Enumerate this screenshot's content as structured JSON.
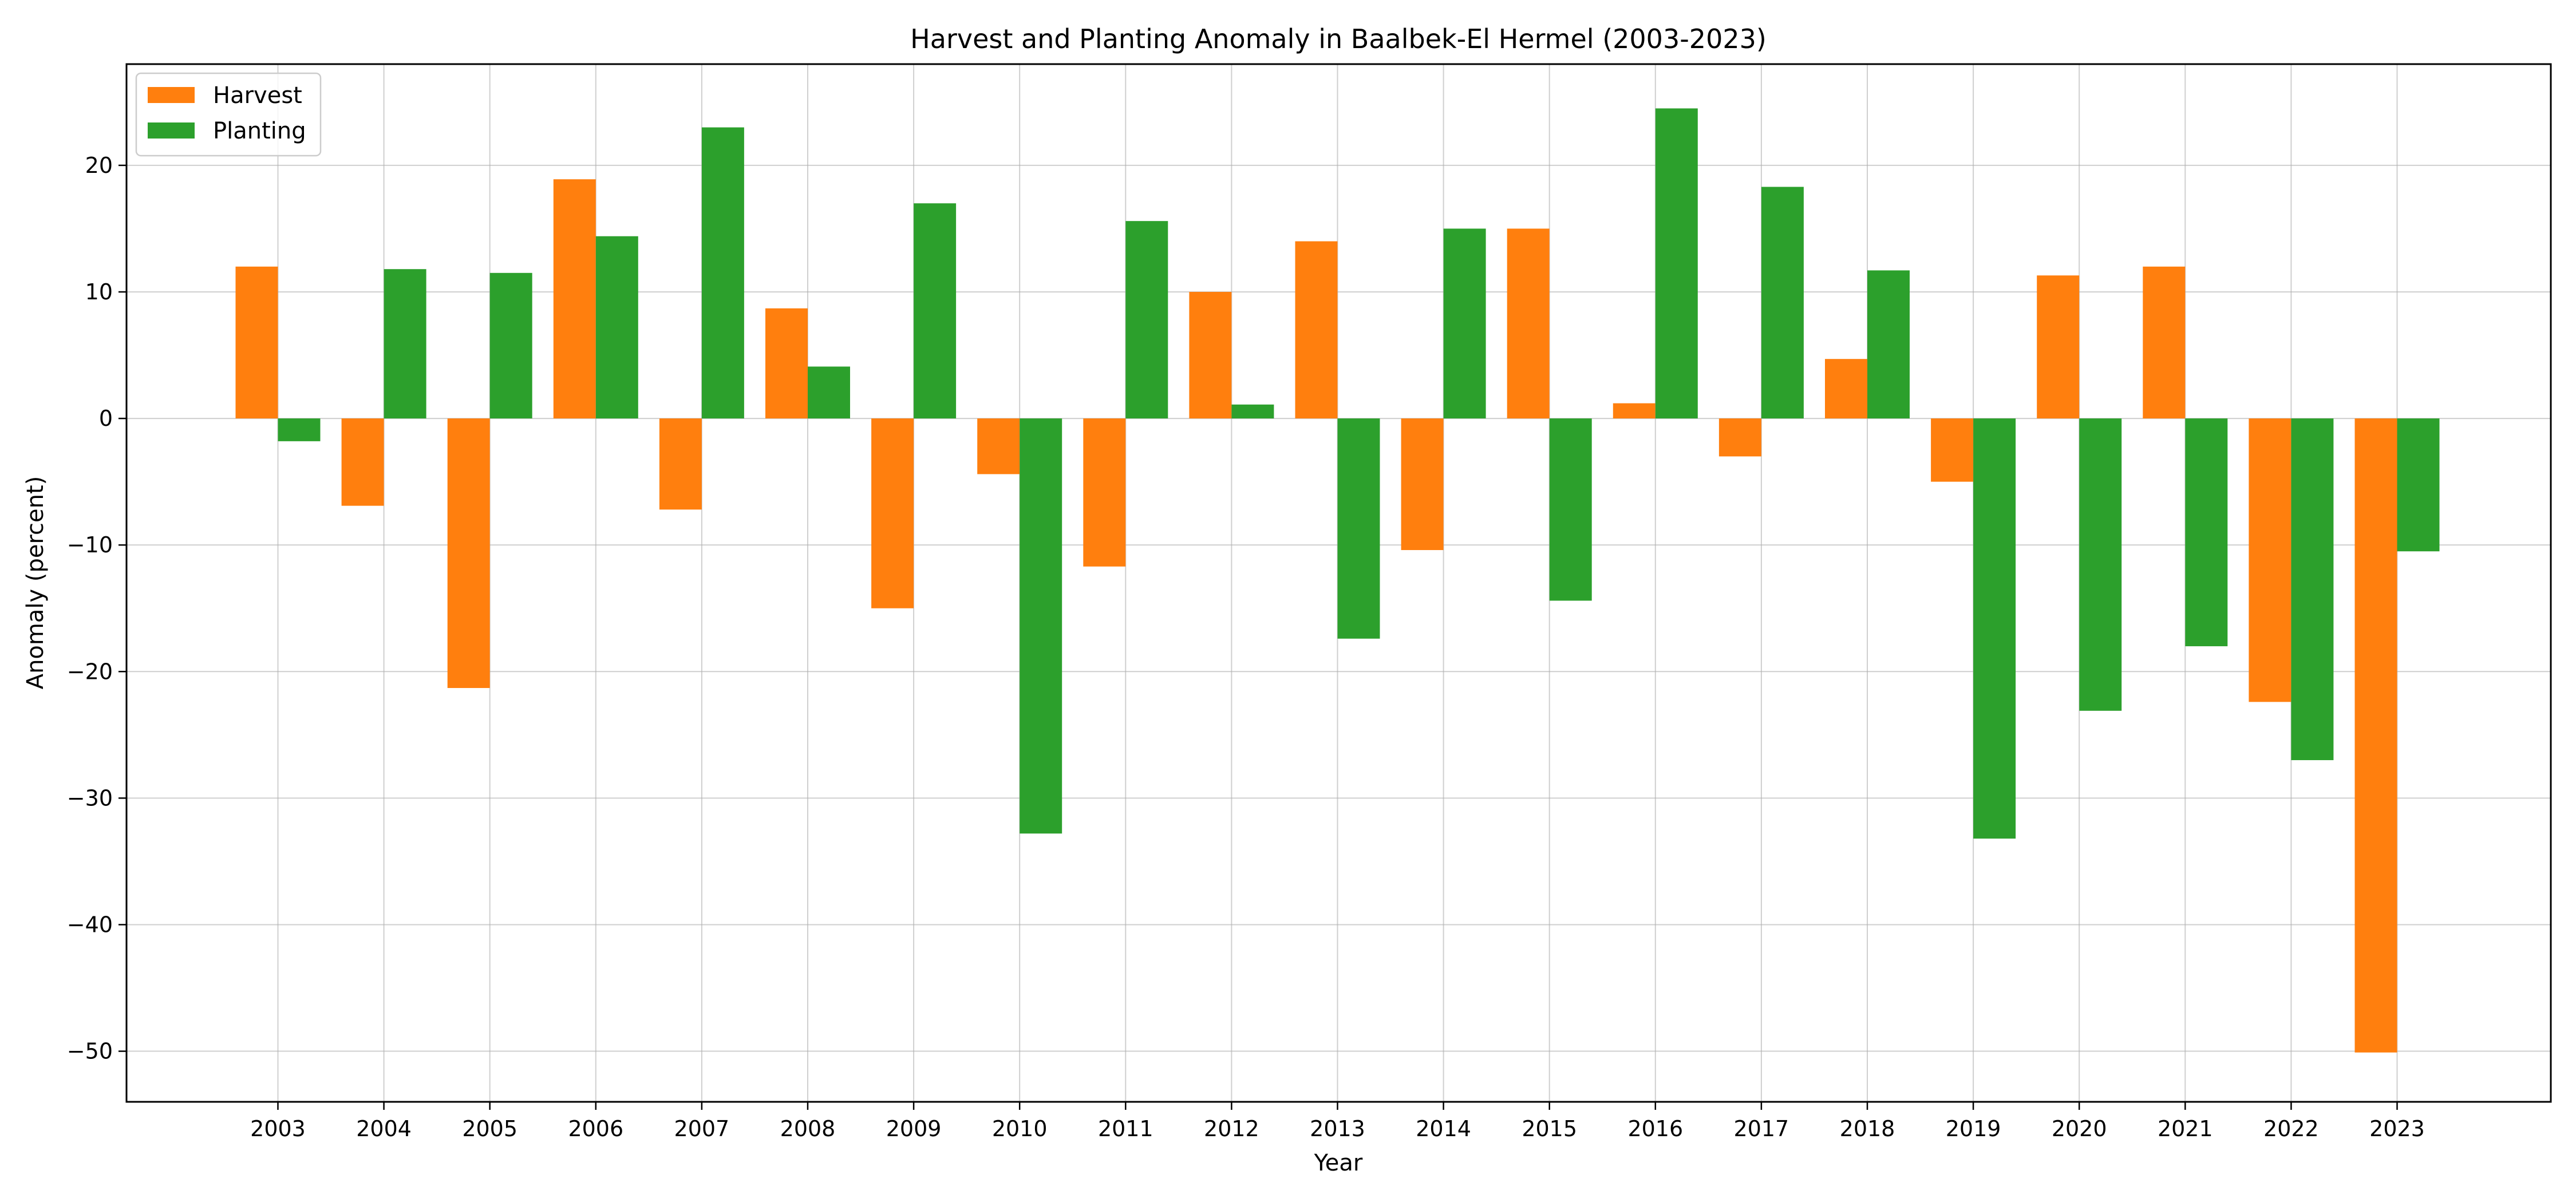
{
  "chart_data": {
    "type": "bar",
    "title": "Harvest and Planting Anomaly in Baalbek-El Hermel (2003-2023)",
    "xlabel": "Year",
    "ylabel": "Anomaly (percent)",
    "categories": [
      "2003",
      "2004",
      "2005",
      "2006",
      "2007",
      "2008",
      "2009",
      "2010",
      "2011",
      "2012",
      "2013",
      "2014",
      "2015",
      "2016",
      "2017",
      "2018",
      "2019",
      "2020",
      "2021",
      "2022",
      "2023"
    ],
    "series": [
      {
        "name": "Harvest",
        "color": "#ff7f0e",
        "values": [
          12.0,
          -6.9,
          -21.3,
          18.9,
          -7.2,
          8.7,
          -15.0,
          -4.4,
          -11.7,
          10.0,
          14.0,
          -10.4,
          15.0,
          1.2,
          -3.0,
          4.7,
          -5.0,
          11.3,
          12.0,
          -22.4,
          -50.1
        ]
      },
      {
        "name": "Planting",
        "color": "#2ca02c",
        "values": [
          -1.8,
          11.8,
          11.5,
          14.4,
          23.0,
          4.1,
          17.0,
          -32.8,
          15.6,
          1.1,
          -17.4,
          15.0,
          -14.4,
          24.5,
          18.3,
          11.7,
          -33.2,
          -23.1,
          -18.0,
          -27.0,
          -10.5
        ]
      }
    ],
    "yticks": [
      20,
      10,
      0,
      -10,
      -20,
      -30,
      -40,
      -50
    ],
    "ylim": [
      -54,
      28
    ],
    "grid": true,
    "legend_position": "top-left"
  }
}
